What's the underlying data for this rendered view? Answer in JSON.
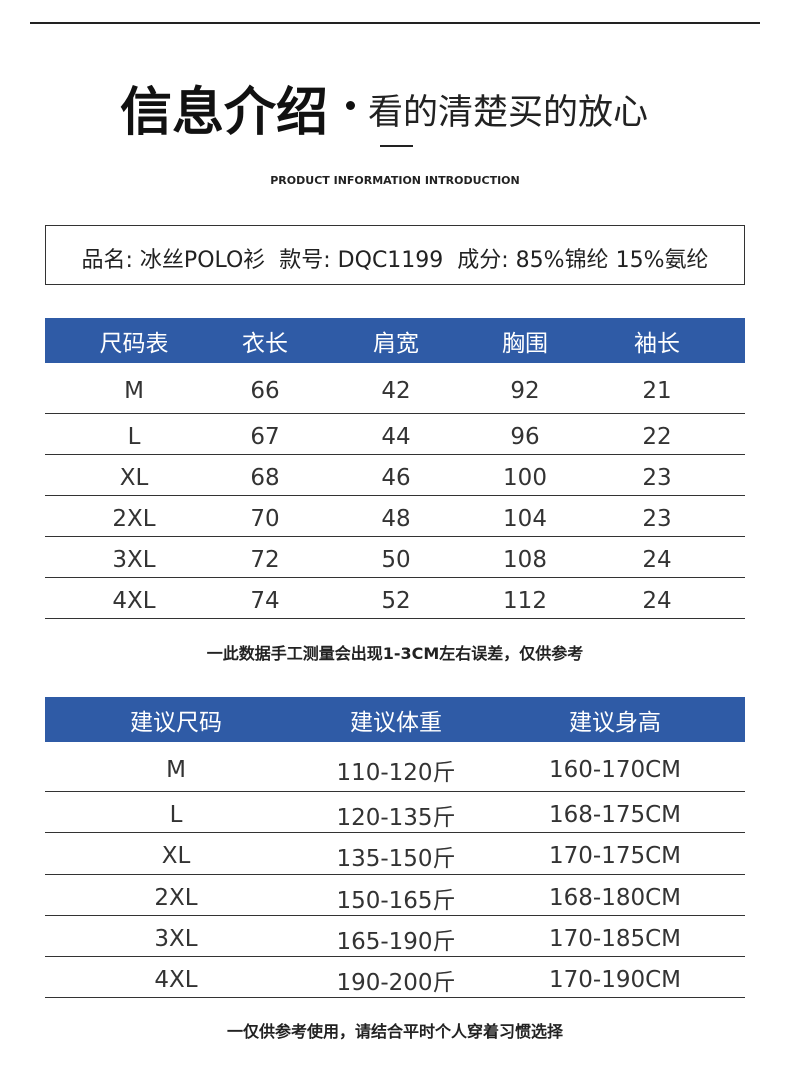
{
  "header": {
    "title": "信息介绍",
    "slogan": "看的清楚买的放心",
    "subtitle": "PRODUCT INFORMATION INTRODUCTION"
  },
  "info": "品名: 冰丝POLO衫  款号: DQC1199  成分: 85%锦纶 15%氨纶",
  "size_table": {
    "columns": [
      "尺码表",
      "衣长",
      "肩宽",
      "胸围",
      "袖长"
    ],
    "rows": [
      [
        "M",
        "66",
        "42",
        "92",
        "21"
      ],
      [
        "L",
        "67",
        "44",
        "96",
        "22"
      ],
      [
        "XL",
        "68",
        "46",
        "100",
        "23"
      ],
      [
        "2XL",
        "70",
        "48",
        "104",
        "23"
      ],
      [
        "3XL",
        "72",
        "50",
        "108",
        "24"
      ],
      [
        "4XL",
        "74",
        "52",
        "112",
        "24"
      ]
    ],
    "note": "一此数据手工测量会出现1-3CM左右误差，仅供参考"
  },
  "fit_table": {
    "columns": [
      "建议尺码",
      "建议体重",
      "建议身高"
    ],
    "rows": [
      [
        "M",
        "110-120斤",
        "160-170CM"
      ],
      [
        "L",
        "120-135斤",
        "168-175CM"
      ],
      [
        "XL",
        "135-150斤",
        "170-175CM"
      ],
      [
        "2XL",
        "150-165斤",
        "168-180CM"
      ],
      [
        "3XL",
        "165-190斤",
        "170-185CM"
      ],
      [
        "4XL",
        "190-200斤",
        "170-190CM"
      ]
    ],
    "note": "一仅供参考使用，请结合平时个人穿着习惯选择"
  }
}
